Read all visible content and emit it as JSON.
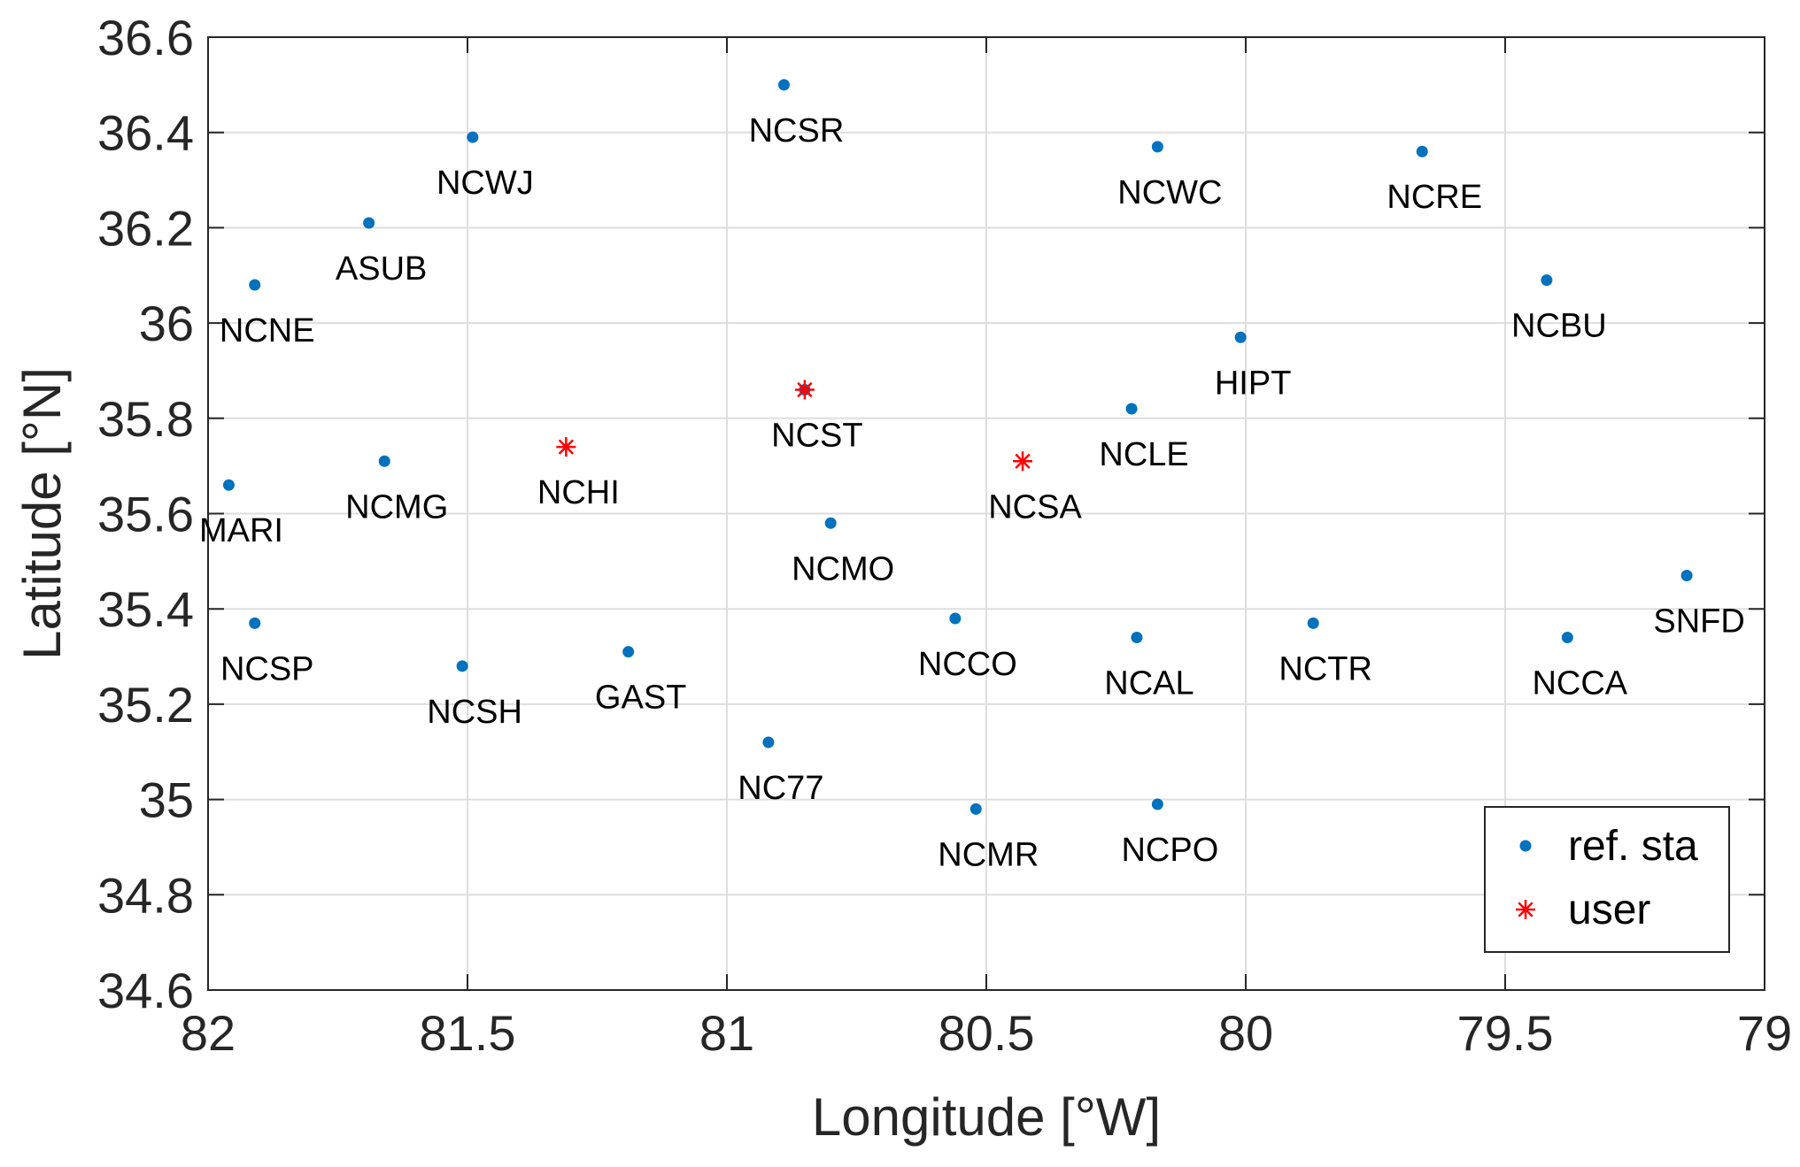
{
  "chart_data": {
    "type": "scatter",
    "xlabel": "Longitude [°W]",
    "ylabel": "Latitude [°N]",
    "xlim": [
      82,
      79
    ],
    "ylim": [
      34.6,
      36.6
    ],
    "x_reversed": true,
    "xticks": [
      "82",
      "81.5",
      "81",
      "80.5",
      "80",
      "79.5",
      "79"
    ],
    "yticks": [
      "34.6",
      "34.8",
      "35",
      "35.2",
      "35.4",
      "35.6",
      "35.8",
      "36",
      "36.2",
      "36.4",
      "36.6"
    ],
    "grid": true,
    "legend_position": "bottom-right",
    "series": [
      {
        "name": "ref. sta",
        "marker": "dot",
        "color": "#0072BD",
        "points": [
          {
            "label": "NCSR",
            "x": 80.89,
            "y": 36.5
          },
          {
            "label": "NCWJ",
            "x": 81.49,
            "y": 36.39
          },
          {
            "label": "ASUB",
            "x": 81.69,
            "y": 36.21
          },
          {
            "label": "NCNE",
            "x": 81.91,
            "y": 36.08
          },
          {
            "label": "NCWC",
            "x": 80.17,
            "y": 36.37
          },
          {
            "label": "NCRE",
            "x": 79.66,
            "y": 36.36
          },
          {
            "label": "NCBU",
            "x": 79.42,
            "y": 36.09
          },
          {
            "label": "HIPT",
            "x": 80.01,
            "y": 35.97
          },
          {
            "label": "NCLE",
            "x": 80.22,
            "y": 35.82
          },
          {
            "label": "NCST",
            "x": 80.85,
            "y": 35.86
          },
          {
            "label": "NCMG",
            "x": 81.66,
            "y": 35.71
          },
          {
            "label": "MARI",
            "x": 81.96,
            "y": 35.66
          },
          {
            "label": "NCMO",
            "x": 80.8,
            "y": 35.58
          },
          {
            "label": "NCSP",
            "x": 81.91,
            "y": 35.37
          },
          {
            "label": "NCSH",
            "x": 81.51,
            "y": 35.28
          },
          {
            "label": "GAST",
            "x": 81.19,
            "y": 35.31
          },
          {
            "label": "NCCO",
            "x": 80.56,
            "y": 35.38
          },
          {
            "label": "NCAL",
            "x": 80.21,
            "y": 35.34
          },
          {
            "label": "NCTR",
            "x": 79.87,
            "y": 35.37
          },
          {
            "label": "NCCA",
            "x": 79.38,
            "y": 35.34
          },
          {
            "label": "SNFD",
            "x": 79.15,
            "y": 35.47
          },
          {
            "label": "NC77",
            "x": 80.92,
            "y": 35.12
          },
          {
            "label": "NCMR",
            "x": 80.52,
            "y": 34.98
          },
          {
            "label": "NCPO",
            "x": 80.17,
            "y": 34.99
          }
        ]
      },
      {
        "name": "user",
        "marker": "asterisk",
        "color": "#FF0000",
        "points": [
          {
            "label": "NCHI",
            "x": 81.31,
            "y": 35.74
          },
          {
            "label": "NCSA",
            "x": 80.43,
            "y": 35.71
          },
          {
            "label": "",
            "x": 80.85,
            "y": 35.86
          }
        ]
      }
    ]
  }
}
